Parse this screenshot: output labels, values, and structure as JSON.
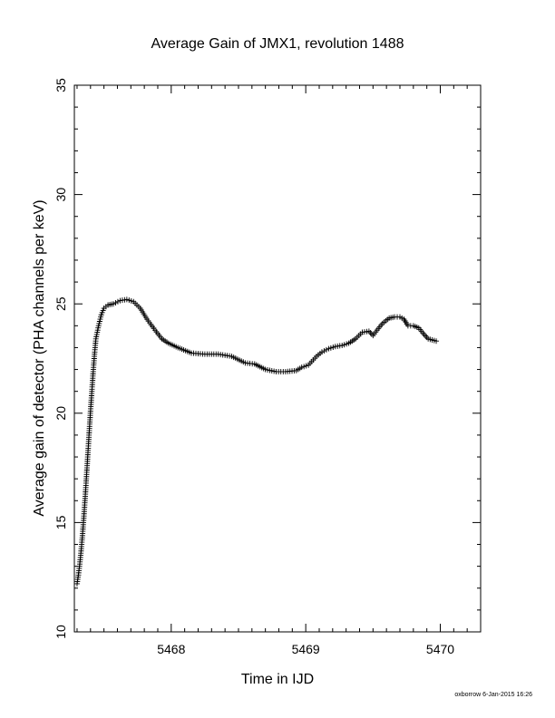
{
  "chart_data": {
    "type": "scatter",
    "title": "Average Gain of JMX1, revolution 1488",
    "xlabel": "Time in IJD",
    "ylabel": "Average gain of detector (PHA channels per keV)",
    "xlim": [
      5467.28,
      5470.3
    ],
    "ylim": [
      10,
      35
    ],
    "x_ticks": [
      "5468",
      "5469",
      "5470"
    ],
    "y_ticks": [
      "10",
      "15",
      "20",
      "25",
      "30",
      "35"
    ],
    "marker": "plus",
    "grid": false,
    "series": [
      {
        "points": [
          [
            5467.3,
            12.2
          ],
          [
            5467.31,
            12.6
          ],
          [
            5467.32,
            13.1
          ],
          [
            5467.33,
            13.7
          ],
          [
            5467.34,
            14.4
          ],
          [
            5467.35,
            15.2
          ],
          [
            5467.36,
            16.1
          ],
          [
            5467.37,
            17.1
          ],
          [
            5467.38,
            18.1
          ],
          [
            5467.39,
            19.1
          ],
          [
            5467.4,
            20.1
          ],
          [
            5467.41,
            21.0
          ],
          [
            5467.42,
            21.9
          ],
          [
            5467.43,
            22.7
          ],
          [
            5467.44,
            23.4
          ],
          [
            5467.46,
            24.0
          ],
          [
            5467.48,
            24.5
          ],
          [
            5467.5,
            24.8
          ],
          [
            5467.53,
            24.95
          ],
          [
            5467.57,
            25.0
          ],
          [
            5467.62,
            25.15
          ],
          [
            5467.67,
            25.2
          ],
          [
            5467.72,
            25.1
          ],
          [
            5467.77,
            24.8
          ],
          [
            5467.82,
            24.3
          ],
          [
            5467.88,
            23.8
          ],
          [
            5467.93,
            23.4
          ],
          [
            5467.98,
            23.2
          ],
          [
            5468.05,
            23.0
          ],
          [
            5468.15,
            22.75
          ],
          [
            5468.25,
            22.7
          ],
          [
            5468.35,
            22.7
          ],
          [
            5468.45,
            22.6
          ],
          [
            5468.55,
            22.3
          ],
          [
            5468.62,
            22.25
          ],
          [
            5468.7,
            22.0
          ],
          [
            5468.78,
            21.9
          ],
          [
            5468.85,
            21.9
          ],
          [
            5468.93,
            21.95
          ],
          [
            5468.97,
            22.1
          ],
          [
            5469.02,
            22.2
          ],
          [
            5469.08,
            22.6
          ],
          [
            5469.12,
            22.8
          ],
          [
            5469.17,
            22.95
          ],
          [
            5469.22,
            23.05
          ],
          [
            5469.27,
            23.1
          ],
          [
            5469.32,
            23.2
          ],
          [
            5469.37,
            23.4
          ],
          [
            5469.42,
            23.7
          ],
          [
            5469.47,
            23.75
          ],
          [
            5469.5,
            23.55
          ],
          [
            5469.53,
            23.8
          ],
          [
            5469.57,
            24.1
          ],
          [
            5469.62,
            24.35
          ],
          [
            5469.66,
            24.4
          ],
          [
            5469.7,
            24.4
          ],
          [
            5469.73,
            24.3
          ],
          [
            5469.76,
            24.0
          ],
          [
            5469.8,
            24.0
          ],
          [
            5469.84,
            23.9
          ],
          [
            5469.88,
            23.6
          ],
          [
            5469.91,
            23.4
          ],
          [
            5469.94,
            23.35
          ],
          [
            5469.97,
            23.3
          ]
        ]
      }
    ]
  },
  "footer": {
    "credit": "oxborrow  6-Jan-2015 16:26"
  }
}
